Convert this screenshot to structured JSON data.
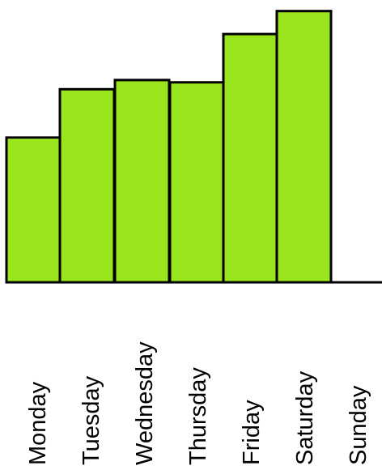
{
  "chart_data": {
    "type": "bar",
    "categories": [
      "Monday",
      "Tuesday",
      "Wednesday",
      "Thursday",
      "Friday",
      "Saturday",
      "Sunday"
    ],
    "values": [
      63,
      84,
      88,
      87,
      108,
      118,
      0
    ],
    "ylim": [
      0,
      120
    ],
    "title": "",
    "xlabel": "",
    "ylabel": "",
    "grid": false,
    "bar_color": "#99e51e",
    "outline_color": "#000000"
  }
}
